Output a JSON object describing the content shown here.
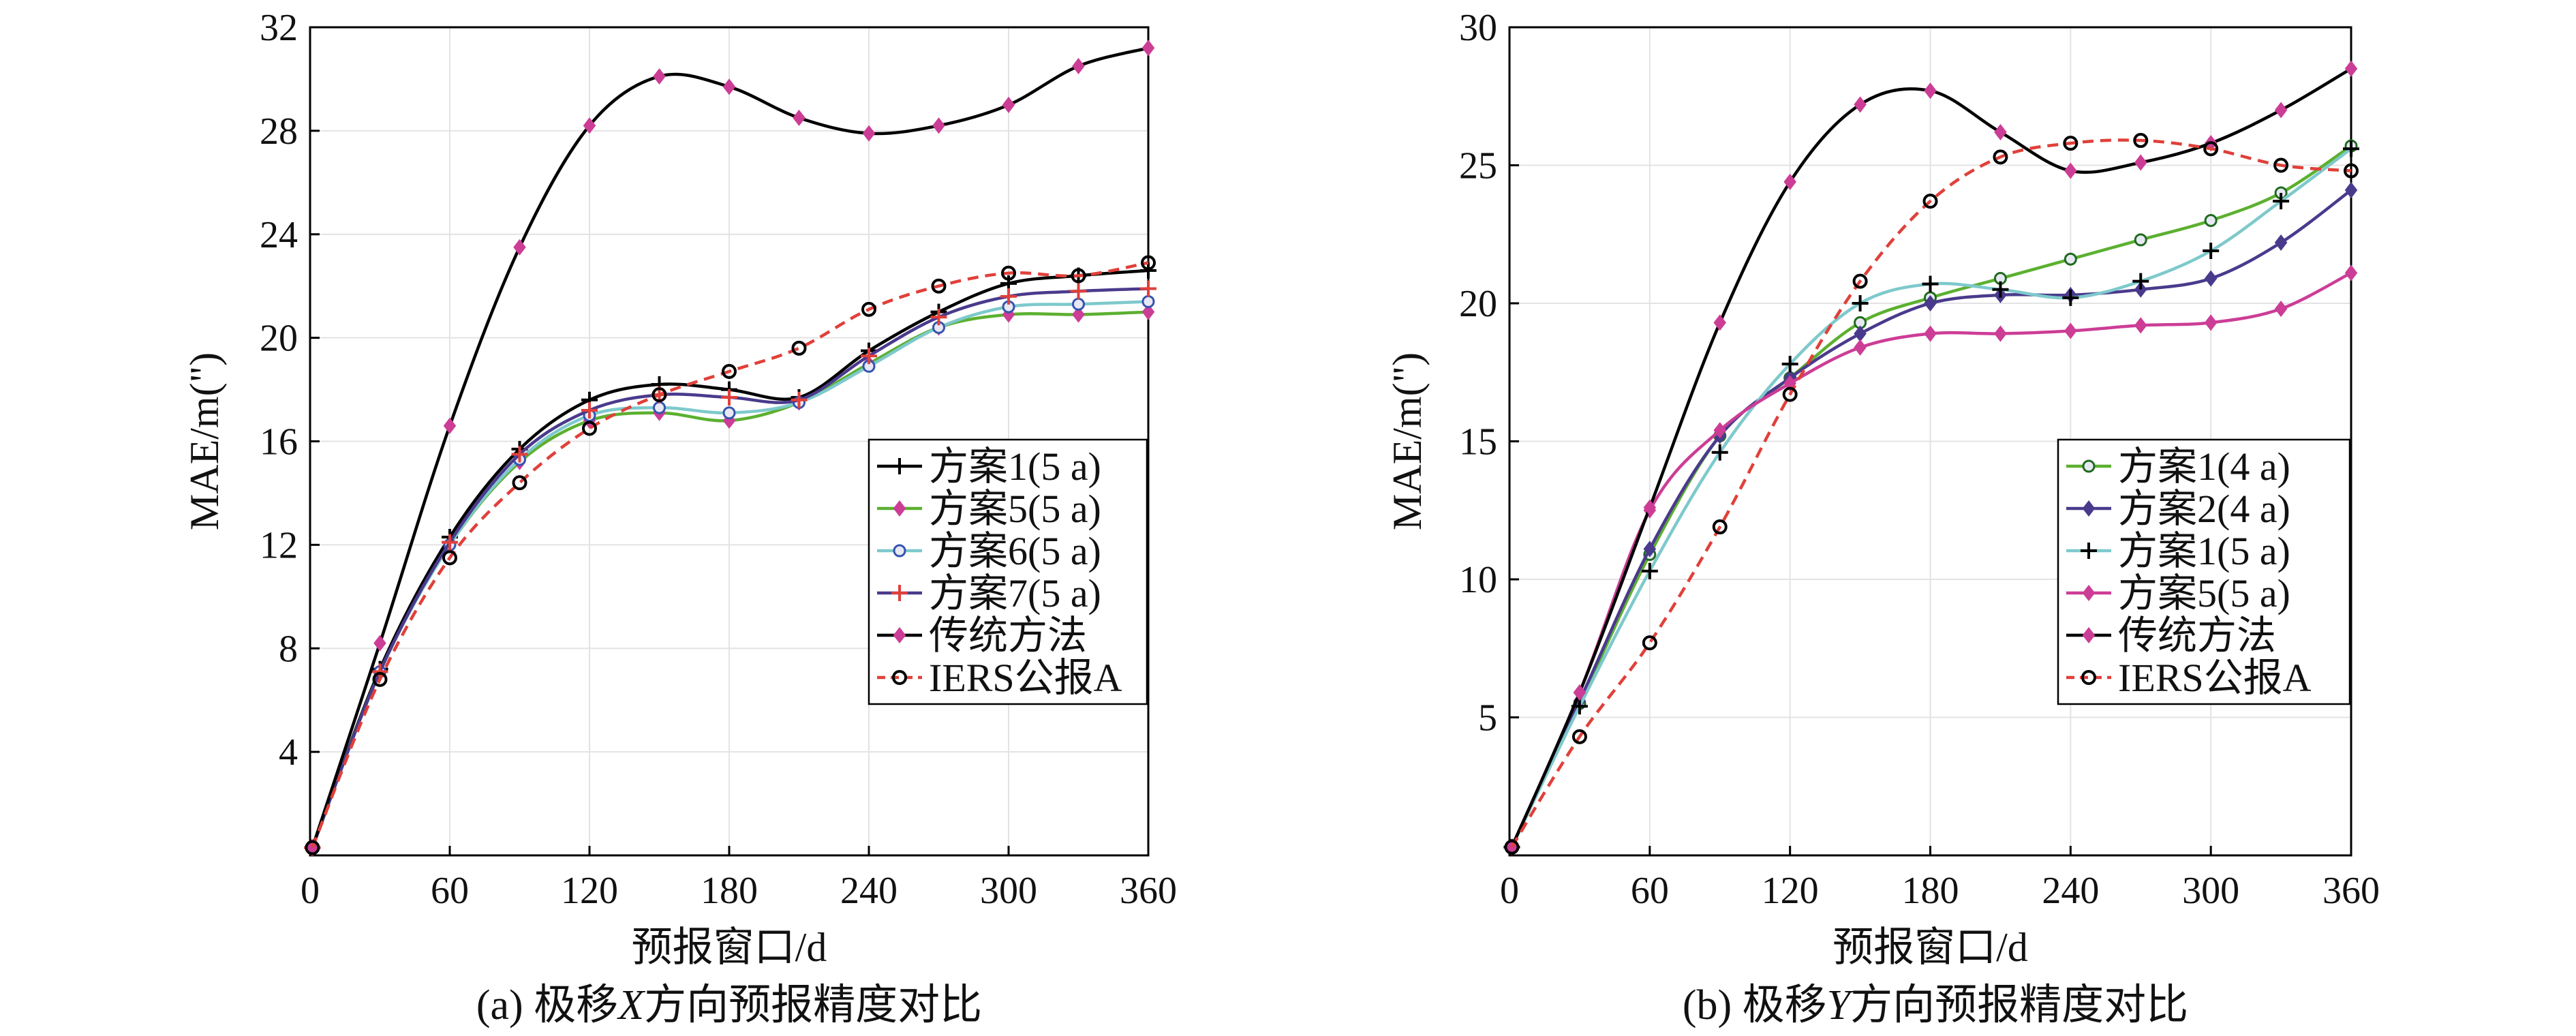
{
  "figure": {
    "panel_a_caption": {
      "prefix": "(a) 极移",
      "axis_letter": "X",
      "suffix": "方向预报精度对比"
    },
    "panel_b_caption": {
      "prefix": "(b) 极移",
      "axis_letter": "Y",
      "suffix": "方向预报精度对比"
    }
  },
  "chart_data": [
    {
      "type": "line",
      "panel": "a",
      "xlabel": "预报窗口/d",
      "ylabel": "MAE/m(\")",
      "xlim": [
        0,
        360
      ],
      "ylim": [
        0,
        32
      ],
      "xticks": [
        0,
        60,
        120,
        180,
        240,
        300,
        360
      ],
      "yticks": [
        4,
        8,
        12,
        16,
        20,
        24,
        28,
        32
      ],
      "grid": true,
      "legend_position": "center-right",
      "series": [
        {
          "name": "方案1(5 a)",
          "color": "#000000",
          "dash": "solid",
          "marker": "plus",
          "marker_color": "#000000",
          "x": [
            1,
            30,
            60,
            90,
            120,
            150,
            180,
            210,
            240,
            270,
            300,
            330,
            360
          ],
          "y": [
            0.3,
            7.2,
            12.3,
            15.7,
            17.6,
            18.2,
            18.0,
            17.7,
            19.5,
            21.0,
            22.1,
            22.4,
            22.6
          ]
        },
        {
          "name": "方案5(5 a)",
          "color": "#5cb030",
          "dash": "solid",
          "marker": "diamond",
          "marker_color": "#cc3d96",
          "x": [
            1,
            30,
            60,
            90,
            120,
            150,
            180,
            210,
            240,
            270,
            300,
            330,
            360
          ],
          "y": [
            0.3,
            7.1,
            12.0,
            15.2,
            16.8,
            17.1,
            16.8,
            17.5,
            19.0,
            20.4,
            20.9,
            20.9,
            21.0
          ]
        },
        {
          "name": "方案6(5 a)",
          "color": "#7ec9cc",
          "dash": "solid",
          "marker": "circle",
          "marker_color": "#3553b0",
          "x": [
            1,
            30,
            60,
            90,
            120,
            150,
            180,
            210,
            240,
            270,
            300,
            330,
            360
          ],
          "y": [
            0.3,
            7.1,
            12.0,
            15.3,
            17.0,
            17.3,
            17.1,
            17.5,
            18.9,
            20.4,
            21.2,
            21.3,
            21.4
          ]
        },
        {
          "name": "方案7(5 a)",
          "color": "#4a3a8c",
          "dash": "solid",
          "marker": "plus",
          "marker_color": "#e0403a",
          "x": [
            1,
            30,
            60,
            90,
            120,
            150,
            180,
            210,
            240,
            270,
            300,
            330,
            360
          ],
          "y": [
            0.3,
            7.1,
            12.1,
            15.5,
            17.2,
            17.8,
            17.7,
            17.6,
            19.3,
            20.8,
            21.6,
            21.8,
            21.9
          ]
        },
        {
          "name": "传统方法",
          "color": "#000000",
          "dash": "solid",
          "marker": "diamond",
          "marker_color": "#cc3d96",
          "x": [
            1,
            30,
            60,
            90,
            120,
            150,
            180,
            210,
            240,
            270,
            300,
            330,
            360
          ],
          "y": [
            0.3,
            8.2,
            16.6,
            23.5,
            28.2,
            30.1,
            29.7,
            28.5,
            27.9,
            28.2,
            29.0,
            30.5,
            31.2
          ]
        },
        {
          "name": "IERS公报A",
          "color": "#e0403a",
          "dash": "dashed",
          "marker": "circle-open",
          "marker_color": "#000000",
          "x": [
            1,
            30,
            60,
            90,
            120,
            150,
            180,
            210,
            240,
            270,
            300,
            330,
            360
          ],
          "y": [
            0.3,
            6.8,
            11.5,
            14.4,
            16.5,
            17.8,
            18.7,
            19.6,
            21.1,
            22.0,
            22.5,
            22.4,
            22.9
          ]
        }
      ]
    },
    {
      "type": "line",
      "panel": "b",
      "xlabel": "预报窗口/d",
      "ylabel": "MAE/m(\")",
      "xlim": [
        0,
        360
      ],
      "ylim": [
        0,
        30
      ],
      "xticks": [
        0,
        60,
        120,
        180,
        240,
        300,
        360
      ],
      "yticks": [
        5,
        10,
        15,
        20,
        25,
        30
      ],
      "grid": true,
      "legend_position": "center-right",
      "series": [
        {
          "name": "方案1(4 a)",
          "color": "#5cb030",
          "dash": "solid",
          "marker": "circle",
          "marker_color": "#1f6b1f",
          "x": [
            1,
            30,
            60,
            90,
            120,
            150,
            180,
            210,
            240,
            270,
            300,
            330,
            360
          ],
          "y": [
            0.3,
            5.5,
            10.9,
            15.2,
            17.3,
            19.3,
            20.2,
            20.9,
            21.6,
            22.3,
            23.0,
            24.0,
            25.7
          ]
        },
        {
          "name": "方案2(4 a)",
          "color": "#4a3a8c",
          "dash": "solid",
          "marker": "diamond",
          "marker_color": "#4a3a8c",
          "x": [
            1,
            30,
            60,
            90,
            120,
            150,
            180,
            210,
            240,
            270,
            300,
            330,
            360
          ],
          "y": [
            0.3,
            5.6,
            11.1,
            15.2,
            17.3,
            18.9,
            20.0,
            20.3,
            20.3,
            20.5,
            20.9,
            22.2,
            24.1
          ]
        },
        {
          "name": "方案1(5 a)",
          "color": "#7ec9cc",
          "dash": "solid",
          "marker": "plus",
          "marker_color": "#000000",
          "x": [
            1,
            30,
            60,
            90,
            120,
            150,
            180,
            210,
            240,
            270,
            300,
            330,
            360
          ],
          "y": [
            0.3,
            5.4,
            10.3,
            14.6,
            17.8,
            20.0,
            20.7,
            20.5,
            20.2,
            20.8,
            21.9,
            23.7,
            25.6
          ]
        },
        {
          "name": "方案5(5 a)",
          "color": "#cc3d96",
          "dash": "solid",
          "marker": "diamond",
          "marker_color": "#cc3d96",
          "x": [
            1,
            30,
            60,
            90,
            120,
            150,
            180,
            210,
            240,
            270,
            300,
            330,
            360
          ],
          "y": [
            0.3,
            5.9,
            12.5,
            15.4,
            17.1,
            18.4,
            18.9,
            18.9,
            19.0,
            19.2,
            19.3,
            19.8,
            21.1
          ]
        },
        {
          "name": "传统方法",
          "color": "#000000",
          "dash": "solid",
          "marker": "diamond",
          "marker_color": "#cc3d96",
          "x": [
            1,
            30,
            60,
            90,
            120,
            150,
            180,
            210,
            240,
            270,
            300,
            330,
            360
          ],
          "y": [
            0.3,
            5.9,
            12.6,
            19.3,
            24.4,
            27.2,
            27.7,
            26.2,
            24.8,
            25.1,
            25.8,
            27.0,
            28.5
          ]
        },
        {
          "name": "IERS公报A",
          "color": "#e0403a",
          "dash": "dashed",
          "marker": "circle-open",
          "marker_color": "#000000",
          "x": [
            1,
            30,
            60,
            90,
            120,
            150,
            180,
            210,
            240,
            270,
            300,
            330,
            360
          ],
          "y": [
            0.3,
            4.3,
            7.7,
            11.9,
            16.7,
            20.8,
            23.7,
            25.3,
            25.8,
            25.9,
            25.6,
            25.0,
            24.8
          ]
        }
      ]
    }
  ]
}
